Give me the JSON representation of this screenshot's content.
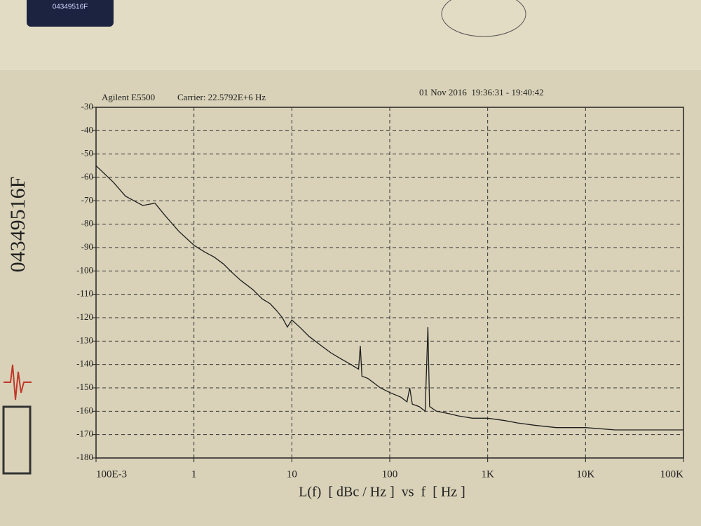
{
  "chart_data": {
    "type": "line",
    "annotations": [
      "Agilent E5500",
      "Carrier: 22.5792E+6 Hz",
      "01 Nov 2016  19:36:31 - 19:40:42"
    ],
    "serial": "04349516F",
    "sticker": "04349516F",
    "x_label": "L(f)  [ dBc / Hz ]  vs  f  [ Hz ]",
    "xscale": "log",
    "grid": true,
    "xlim": [
      0.1,
      100000
    ],
    "xticks": [
      {
        "value": 0.1,
        "label": "100E-3"
      },
      1,
      10,
      100,
      {
        "value": 1000,
        "label": "1K"
      },
      {
        "value": 10000,
        "label": "10K"
      },
      {
        "value": 100000,
        "label": "100K"
      }
    ],
    "ylim": [
      -180,
      -30
    ],
    "yticks": [
      -30,
      -40,
      -50,
      -60,
      -70,
      -80,
      -90,
      -100,
      -110,
      -120,
      -130,
      -140,
      -150,
      -160,
      -170,
      -180
    ],
    "series": [
      {
        "color": "#1e1e1e",
        "x": [
          0.1,
          0.15,
          0.2,
          0.3,
          0.4,
          0.5,
          0.7,
          1,
          1.3,
          1.6,
          2,
          2.5,
          3,
          4,
          5,
          6,
          7,
          8,
          9,
          10,
          12,
          15,
          20,
          25,
          30,
          40,
          48,
          50,
          52,
          60,
          80,
          100,
          130,
          150,
          160,
          170,
          200,
          230,
          245,
          255,
          300,
          400,
          500,
          700,
          1000,
          1500,
          2000,
          3000,
          5000,
          10000,
          20000,
          50000,
          100000
        ],
        "values": [
          -55,
          -62,
          -68,
          -72,
          -71,
          -76,
          -83,
          -89,
          -92,
          -94,
          -97,
          -101,
          -104,
          -108,
          -112,
          -114,
          -117,
          -120,
          -124,
          -121,
          -124,
          -128,
          -132,
          -135,
          -137,
          -140,
          -142,
          -132,
          -145,
          -146,
          -150,
          -152,
          -154,
          -156,
          -150,
          -157,
          -158,
          -160,
          -124,
          -158,
          -160,
          -161,
          -162,
          -163,
          -163,
          -164,
          -165,
          -166,
          -167,
          -167,
          -168,
          -168,
          -168
        ]
      }
    ]
  }
}
